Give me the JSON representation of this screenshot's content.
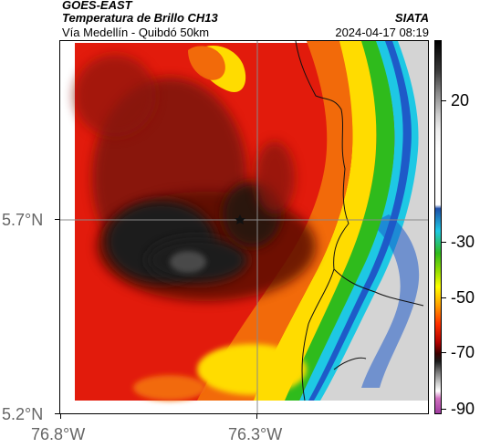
{
  "header": {
    "satellite": "GOES-EAST",
    "product": "Temperatura de Brillo CH13",
    "region": "Vía Medellín - Quibdó 50km",
    "org": "SIATA",
    "datetime": "2024-04-17 08:19"
  },
  "axes": {
    "lat_ticks": [
      "5.7°N",
      "5.2°N"
    ],
    "lon_ticks": [
      "76.8°W",
      "76.3°W"
    ]
  },
  "colorbar": {
    "ticks": [
      "20",
      "-30",
      "-50",
      "-70",
      "-90"
    ]
  },
  "colors": {
    "red": "#e21b0c",
    "dark": "#1a1a1a",
    "orange": "#f26a0a",
    "yellow": "#ffdc00",
    "green": "#2fbb1c",
    "cyan": "#1ec8e4",
    "blue": "#1e5ac8",
    "gray": "#d4d4d4"
  }
}
